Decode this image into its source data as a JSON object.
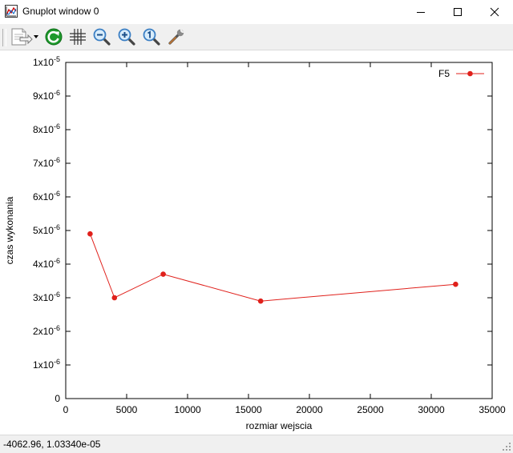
{
  "window": {
    "title": "Gnuplot window 0"
  },
  "toolbar": {
    "buttons": [
      {
        "name": "copy-print-menu-icon"
      },
      {
        "name": "replot-icon"
      },
      {
        "name": "grid-icon"
      },
      {
        "name": "zoom-out-icon"
      },
      {
        "name": "zoom-in-icon"
      },
      {
        "name": "zoom-reset-icon"
      },
      {
        "name": "options-icon"
      }
    ]
  },
  "status": {
    "coordinates": "-4062.96,  1.03340e-05"
  },
  "chart_data": {
    "type": "line",
    "title": "",
    "xlabel": "rozmiar wejscia",
    "ylabel": "czas wykonania",
    "xlim": [
      0,
      35000
    ],
    "ylim": [
      0,
      1e-05
    ],
    "x_ticks": [
      {
        "value": 0,
        "label": "0"
      },
      {
        "value": 5000,
        "label": "5000"
      },
      {
        "value": 10000,
        "label": "10000"
      },
      {
        "value": 15000,
        "label": "15000"
      },
      {
        "value": 20000,
        "label": "20000"
      },
      {
        "value": 25000,
        "label": "25000"
      },
      {
        "value": 30000,
        "label": "30000"
      },
      {
        "value": 35000,
        "label": "35000"
      }
    ],
    "y_ticks": [
      {
        "value": 0,
        "mant": "0",
        "exp": ""
      },
      {
        "value": 1e-06,
        "mant": "1x10",
        "exp": "-6"
      },
      {
        "value": 2e-06,
        "mant": "2x10",
        "exp": "-6"
      },
      {
        "value": 3e-06,
        "mant": "3x10",
        "exp": "-6"
      },
      {
        "value": 4e-06,
        "mant": "4x10",
        "exp": "-6"
      },
      {
        "value": 5e-06,
        "mant": "5x10",
        "exp": "-6"
      },
      {
        "value": 6e-06,
        "mant": "6x10",
        "exp": "-6"
      },
      {
        "value": 7e-06,
        "mant": "7x10",
        "exp": "-6"
      },
      {
        "value": 8e-06,
        "mant": "8x10",
        "exp": "-6"
      },
      {
        "value": 9e-06,
        "mant": "9x10",
        "exp": "-6"
      },
      {
        "value": 1e-05,
        "mant": "1x10",
        "exp": "-5"
      }
    ],
    "legend_position": "top-right",
    "grid": false,
    "series": [
      {
        "name": "F5",
        "color": "#e0201b",
        "x": [
          2000,
          4000,
          8000,
          16000,
          32000
        ],
        "y": [
          4.9e-06,
          3e-06,
          3.7e-06,
          2.9e-06,
          3.4e-06
        ]
      }
    ]
  }
}
